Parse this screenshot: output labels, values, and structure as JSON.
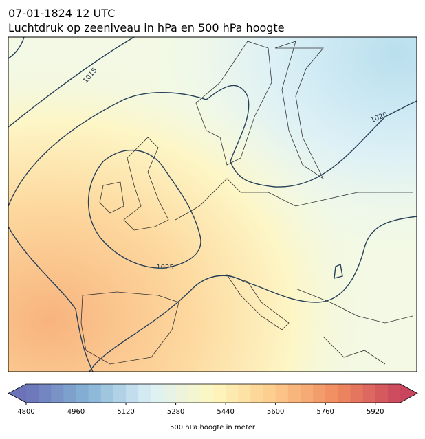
{
  "header": {
    "title_lines": [
      "07-01-1824 12 UTC",
      "Luchtdruk op zeeniveau in hPa en 500 hPa hoogte"
    ]
  },
  "map": {
    "contour_labels": [
      "1015",
      "1020",
      "1025"
    ]
  },
  "colorbar": {
    "label": "500 hPa hoogte in meter",
    "range": [
      4800,
      6000
    ],
    "ticks": [
      4800,
      4960,
      5120,
      5280,
      5440,
      5600,
      5760,
      5920
    ],
    "colors": [
      "#6b72b8",
      "#86b3d6",
      "#dcf0f5",
      "#fdf8c0",
      "#fcc98a",
      "#f08a5f",
      "#c9455e"
    ]
  }
}
